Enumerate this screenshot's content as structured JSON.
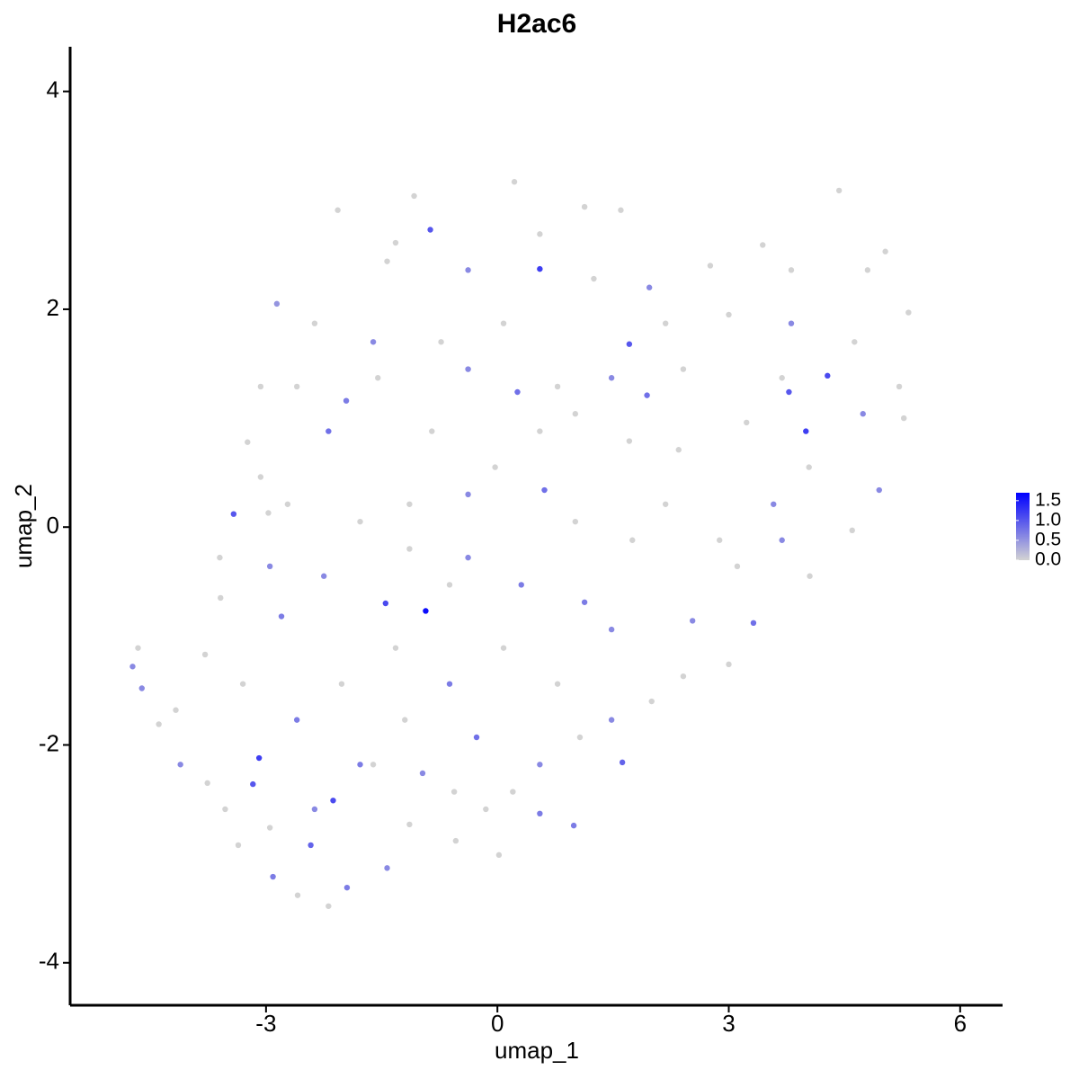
{
  "chart_data": {
    "type": "scatter",
    "title": "H2ac6",
    "x_label": "umap_1",
    "y_label": "umap_2",
    "xlim": [
      -5.54,
      6.55
    ],
    "ylim": [
      -4.39,
      4.41
    ],
    "xticks": [
      -3,
      0,
      3,
      6
    ],
    "yticks": [
      -4,
      -2,
      0,
      2,
      4
    ],
    "low_color": "#d3d3d3",
    "high_color": "#0000ff",
    "clim": [
      0,
      1.7
    ],
    "cticks": [
      {
        "value": 0,
        "label": "0.0"
      },
      0.5,
      {
        "value": 1,
        "label": "1.0"
      },
      1.5
    ],
    "x": [
      -4.73,
      -4.61,
      -4.66,
      -4.39,
      -3.42,
      -3.6,
      -2.97,
      -2.95,
      -2.8,
      -3.09,
      -3.17,
      -2.91,
      -2.59,
      -2.19,
      -1.95,
      -1.43,
      -0.93,
      -1.45,
      0.55,
      -0.87,
      0.22,
      1.71,
      4.28,
      4.0,
      3.78,
      4.43,
      5.33,
      5.27,
      4.95,
      4.6,
      3.32,
      3.0,
      2.41,
      1.62,
      0.99,
      0.02,
      -0.54,
      -1.14,
      -4.11,
      -4.17,
      -3.79,
      -3.24,
      -2.86,
      -2.07,
      -1.08,
      1.13,
      1.6,
      1.97,
      2.76,
      3.44,
      3.81,
      4.8,
      5.03,
      2.35,
      1.75,
      1.13,
      -0.38,
      -0.85,
      -2.19,
      -1.78,
      0.61,
      1.01,
      1.71,
      3.23,
      3.58,
      4.05,
      -0.03,
      -0.38,
      -1.55,
      -2.37,
      -1.43,
      -0.38,
      0.08,
      0.78,
      2.41,
      3.0,
      3.81,
      4.63,
      4.04,
      3.11,
      2.53,
      2.0,
      1.48,
      0.78,
      0.08,
      -0.62,
      -1.2,
      -1.78,
      -2.37,
      -2.95,
      -3.53,
      -2.6,
      -2.02,
      -1.32,
      -2.25,
      -2.72,
      0.55,
      0.2,
      -0.27,
      1.07,
      -0.62,
      0.31,
      -2.6,
      -3.07,
      -3.07,
      5.21,
      4.74,
      -0.73,
      0.26,
      -1.61,
      0.55,
      -1.32,
      2.18,
      -0.38,
      -1.14,
      1.01,
      1.48,
      2.88,
      -3.59,
      -3.3,
      -3.76,
      -3.36,
      -2.42,
      -2.13,
      -1.61,
      -0.97,
      -0.56,
      -0.15,
      0.55,
      -1.96,
      -1.14,
      0.55,
      1.48,
      1.94,
      2.18,
      3.69,
      1.25,
      3.69
    ],
    "y": [
      -1.28,
      -1.48,
      -1.11,
      -1.81,
      0.12,
      -0.28,
      0.13,
      -0.36,
      -0.82,
      -2.12,
      -2.36,
      -3.21,
      -3.38,
      -3.48,
      -3.31,
      -3.13,
      -0.77,
      -0.7,
      2.37,
      2.73,
      3.17,
      1.68,
      1.39,
      0.88,
      1.24,
      3.09,
      1.97,
      1.0,
      0.34,
      -0.03,
      -0.88,
      -1.26,
      -1.37,
      -2.16,
      -2.74,
      -3.01,
      -2.88,
      -2.73,
      -2.18,
      -1.68,
      -1.17,
      0.78,
      2.05,
      2.91,
      3.04,
      2.94,
      2.91,
      2.2,
      2.4,
      2.59,
      2.36,
      2.36,
      2.53,
      0.71,
      -0.12,
      -0.69,
      -0.28,
      0.88,
      0.88,
      0.05,
      0.34,
      1.04,
      0.79,
      0.96,
      0.21,
      -0.45,
      0.55,
      1.45,
      1.37,
      1.87,
      2.44,
      2.36,
      1.87,
      1.29,
      1.45,
      1.95,
      1.87,
      1.7,
      0.55,
      -0.36,
      -0.86,
      -1.6,
      -1.77,
      -1.44,
      -1.11,
      -1.44,
      -1.77,
      -2.18,
      -2.59,
      -2.76,
      -2.59,
      -1.77,
      -1.44,
      -1.11,
      -0.45,
      0.21,
      -2.18,
      -2.43,
      -1.93,
      -1.93,
      -0.53,
      -0.53,
      1.29,
      1.29,
      0.46,
      1.29,
      1.04,
      1.7,
      1.24,
      1.7,
      2.69,
      2.61,
      1.87,
      0.3,
      0.21,
      0.05,
      -0.94,
      -0.12,
      -0.65,
      -1.44,
      -2.35,
      -2.92,
      -2.92,
      -2.51,
      -2.18,
      -2.26,
      -2.43,
      -2.59,
      -2.63,
      1.16,
      -0.2,
      0.88,
      1.37,
      1.21,
      0.21,
      1.37,
      2.28,
      -0.12
    ],
    "values": [
      0.6,
      0.6,
      0,
      0,
      1.0,
      0,
      0,
      0.6,
      0.7,
      1.2,
      1.0,
      0.7,
      0,
      0,
      0.7,
      0.6,
      1.6,
      1.1,
      1.2,
      1.0,
      0,
      1.0,
      1.1,
      1.2,
      1.0,
      0,
      0,
      0,
      0.6,
      0,
      0.8,
      0,
      0,
      0.9,
      0.7,
      0,
      0,
      0,
      0.6,
      0,
      0,
      0,
      0.5,
      0,
      0,
      0,
      0,
      0.6,
      0,
      0,
      0,
      0,
      0,
      0,
      0,
      0.7,
      0.6,
      0,
      0.8,
      0,
      0.8,
      0,
      0,
      0,
      0.6,
      0,
      0,
      0.6,
      0,
      0,
      0,
      0.6,
      0,
      0,
      0,
      0,
      0.6,
      0,
      0,
      0,
      0.6,
      0,
      0.6,
      0,
      0,
      0.7,
      0,
      0.7,
      0.6,
      0,
      0,
      0.7,
      0,
      0,
      0.6,
      0,
      0.6,
      0,
      0.8,
      0,
      0,
      0.7,
      0,
      0,
      0,
      0,
      0.6,
      0,
      0.8,
      0.6,
      0,
      0,
      0,
      0.6,
      0,
      0,
      0.6,
      0,
      0,
      0,
      0,
      0,
      0.9,
      1.1,
      0,
      0.6,
      0,
      0,
      0.7,
      0.7,
      0,
      0,
      0.6,
      0.8,
      0,
      0,
      0,
      0.6
    ]
  }
}
